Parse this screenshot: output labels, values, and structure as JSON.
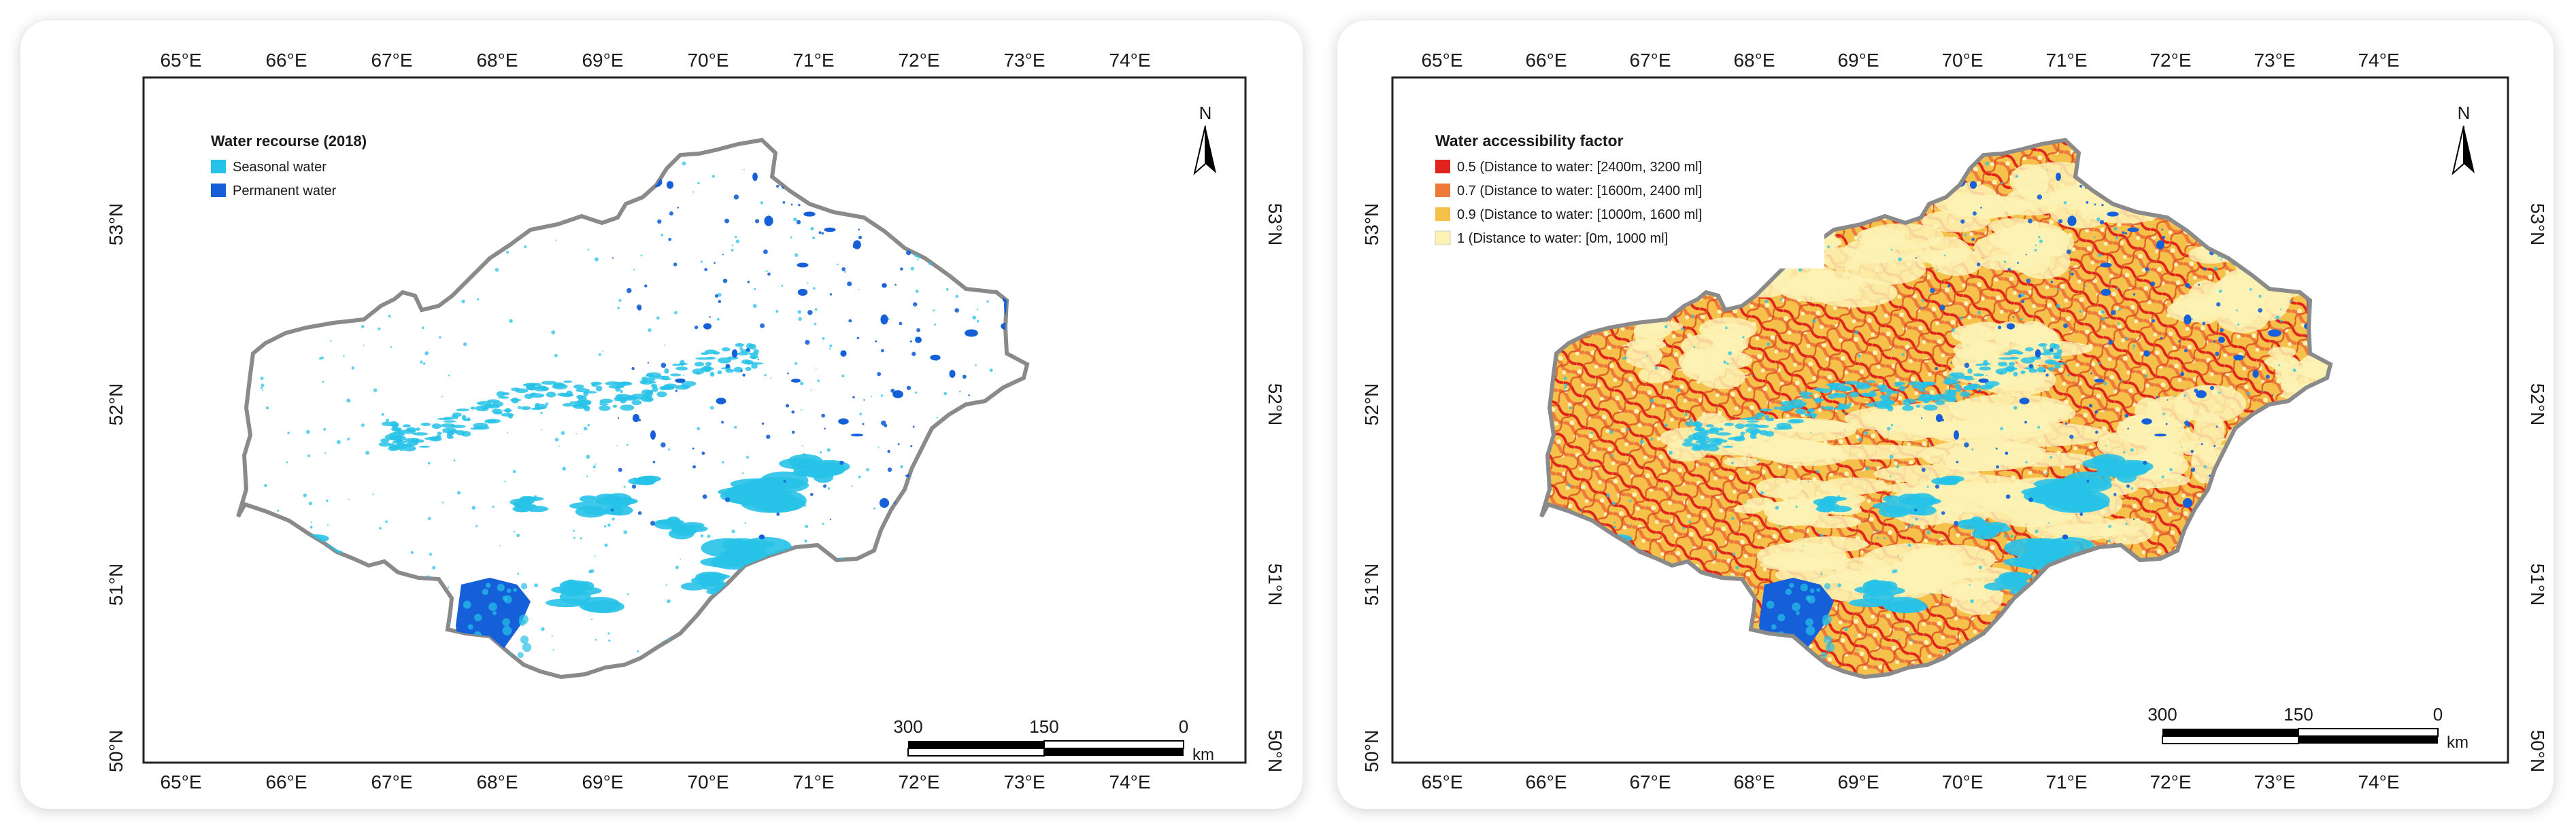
{
  "panels": {
    "left": {
      "legend_title": "Water recourse (2018)",
      "legend_items": [
        {
          "label": "Seasonal water",
          "color": "#27c2e8"
        },
        {
          "label": "Permanent water",
          "color": "#1560d8"
        }
      ]
    },
    "right": {
      "legend_title": "Water accessibility factor",
      "legend_items": [
        {
          "label": "0.5 (Distance to water: [2400m, 3200 ml]",
          "color": "#e0231c"
        },
        {
          "label": "0.7 (Distance to water: [1600m, 2400 ml]",
          "color": "#ee7a3a"
        },
        {
          "label": "0.9 (Distance to water: [1000m, 1600 ml]",
          "color": "#f6c14a"
        },
        {
          "label": "1 (Distance to water: [0m, 1000 ml]",
          "color": "#fbf2b4"
        }
      ]
    }
  },
  "lon_labels": [
    "65°E",
    "66°E",
    "67°E",
    "68°E",
    "69°E",
    "70°E",
    "71°E",
    "72°E",
    "73°E",
    "74°E"
  ],
  "lat_labels": [
    "53°N",
    "52°N",
    "51°N",
    "50°N"
  ],
  "north_label": "N",
  "scale_bar": {
    "ticks": [
      "300",
      "150",
      "0"
    ],
    "unit": "km"
  },
  "colors": {
    "boundary": "#8a8a8a",
    "seasonal_water": "#27c2e8",
    "permanent_water": "#1560d8",
    "accessibility_base": "#fbf2b4",
    "accessibility_mid": "#f6c14a",
    "accessibility_low": "#ee7a3a",
    "accessibility_lowest": "#e0231c"
  },
  "icons": [
    "north-arrow-icon"
  ]
}
